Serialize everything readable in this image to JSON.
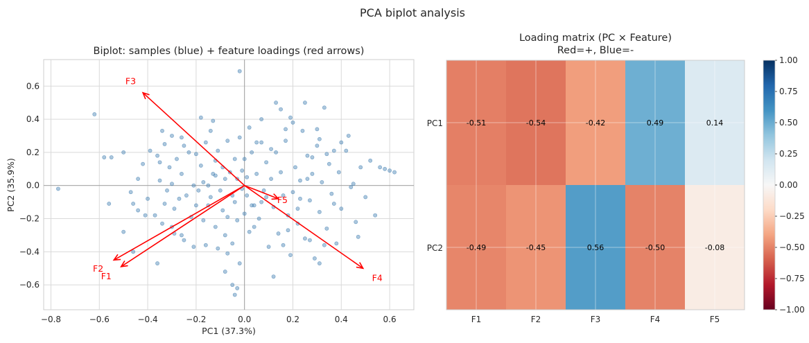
{
  "suptitle": "PCA biplot analysis",
  "chart_data": [
    {
      "type": "scatter",
      "title": "Biplot: samples (blue) + feature loadings (red arrows)",
      "xlabel": "PC1 (37.3%)",
      "ylabel": "PC2 (35.9%)",
      "xlim": [
        -0.83,
        0.7
      ],
      "ylim": [
        -0.75,
        0.76
      ],
      "xticks": [
        -0.8,
        -0.6,
        -0.4,
        -0.2,
        0.0,
        0.2,
        0.4,
        0.6
      ],
      "xtick_labels": [
        "−0.8",
        "−0.6",
        "−0.4",
        "−0.2",
        "0.0",
        "0.2",
        "0.4",
        "0.6"
      ],
      "yticks": [
        -0.6,
        -0.4,
        -0.2,
        0.0,
        0.2,
        0.4,
        0.6
      ],
      "ytick_labels": [
        "−0.6",
        "−0.4",
        "−0.2",
        "0.0",
        "0.2",
        "0.4",
        "0.6"
      ],
      "grid": true,
      "samples_color": "#4682b4",
      "arrow_color": "#ff0000",
      "arrows": [
        {
          "name": "F1",
          "dx": -0.51,
          "dy": -0.49
        },
        {
          "name": "F2",
          "dx": -0.54,
          "dy": -0.45
        },
        {
          "name": "F3",
          "dx": -0.42,
          "dy": 0.56
        },
        {
          "name": "F4",
          "dx": 0.49,
          "dy": -0.5
        },
        {
          "name": "F5",
          "dx": 0.14,
          "dy": -0.08
        }
      ],
      "points": [
        [
          -0.77,
          -0.02
        ],
        [
          -0.62,
          0.43
        ],
        [
          -0.55,
          0.17
        ],
        [
          -0.5,
          -0.28
        ],
        [
          -0.47,
          -0.04
        ],
        [
          -0.46,
          -0.11
        ],
        [
          -0.46,
          -0.4
        ],
        [
          -0.44,
          0.04
        ],
        [
          -0.42,
          0.13
        ],
        [
          -0.41,
          -0.18
        ],
        [
          -0.4,
          -0.08
        ],
        [
          -0.39,
          0.21
        ],
        [
          -0.37,
          -0.18
        ],
        [
          -0.36,
          -0.47
        ],
        [
          -0.36,
          0.18
        ],
        [
          -0.35,
          0.14
        ],
        [
          -0.35,
          0.03
        ],
        [
          -0.34,
          0.33
        ],
        [
          -0.34,
          -0.23
        ],
        [
          -0.33,
          -0.11
        ],
        [
          -0.32,
          -0.03
        ],
        [
          -0.31,
          0.11
        ],
        [
          -0.3,
          0.01
        ],
        [
          -0.29,
          -0.29
        ],
        [
          -0.29,
          -0.14
        ],
        [
          -0.28,
          0.16
        ],
        [
          -0.27,
          -0.08
        ],
        [
          -0.26,
          -0.3
        ],
        [
          -0.26,
          0.07
        ],
        [
          -0.25,
          0.24
        ],
        [
          -0.24,
          -0.06
        ],
        [
          -0.23,
          0.2
        ],
        [
          -0.22,
          -0.19
        ],
        [
          -0.21,
          0.0
        ],
        [
          -0.2,
          0.19
        ],
        [
          -0.2,
          -0.12
        ],
        [
          -0.19,
          -0.03
        ],
        [
          -0.18,
          0.12
        ],
        [
          -0.17,
          0.02
        ],
        [
          -0.17,
          -0.21
        ],
        [
          -0.16,
          0.26
        ],
        [
          -0.15,
          -0.12
        ],
        [
          -0.15,
          0.0
        ],
        [
          -0.14,
          0.33
        ],
        [
          -0.14,
          -0.07
        ],
        [
          -0.13,
          0.07
        ],
        [
          -0.12,
          -0.25
        ],
        [
          -0.12,
          0.15
        ],
        [
          -0.11,
          -0.38
        ],
        [
          -0.11,
          0.21
        ],
        [
          -0.1,
          -0.03
        ],
        [
          -0.09,
          -0.15
        ],
        [
          -0.09,
          0.11
        ],
        [
          -0.08,
          -0.3
        ],
        [
          -0.08,
          0.04
        ],
        [
          -0.07,
          -0.19
        ],
        [
          -0.07,
          0.27
        ],
        [
          -0.06,
          0.08
        ],
        [
          -0.05,
          -0.06
        ],
        [
          -0.05,
          -0.35
        ],
        [
          -0.04,
          0.16
        ],
        [
          -0.04,
          -0.1
        ],
        [
          -0.03,
          0.04
        ],
        [
          -0.03,
          -0.21
        ],
        [
          -0.02,
          0.29
        ],
        [
          -0.02,
          -0.47
        ],
        [
          -0.01,
          0.09
        ],
        [
          -0.01,
          -0.02
        ],
        [
          0.0,
          -0.17
        ],
        [
          0.0,
          0.16
        ],
        [
          0.01,
          -0.06
        ],
        [
          0.01,
          0.05
        ],
        [
          0.02,
          0.35
        ],
        [
          0.02,
          -0.28
        ],
        [
          0.03,
          0.2
        ],
        [
          0.04,
          -0.12
        ],
        [
          0.05,
          0.07
        ],
        [
          0.06,
          -0.2
        ],
        [
          0.07,
          0.26
        ],
        [
          0.08,
          -0.03
        ],
        [
          0.09,
          0.14
        ],
        [
          0.1,
          -0.37
        ],
        [
          0.11,
          0.04
        ],
        [
          0.12,
          -0.13
        ],
        [
          0.13,
          0.2
        ],
        [
          0.14,
          -0.29
        ],
        [
          0.15,
          0.08
        ],
        [
          0.16,
          -0.06
        ],
        [
          0.17,
          0.27
        ],
        [
          0.18,
          -0.18
        ],
        [
          0.19,
          0.41
        ],
        [
          0.2,
          -0.04
        ],
        [
          0.21,
          0.11
        ],
        [
          0.22,
          -0.23
        ],
        [
          0.23,
          0.03
        ],
        [
          0.24,
          0.33
        ],
        [
          0.25,
          -0.32
        ],
        [
          0.26,
          0.18
        ],
        [
          0.27,
          -0.09
        ],
        [
          0.28,
          0.07
        ],
        [
          0.29,
          -0.44
        ],
        [
          0.3,
          0.24
        ],
        [
          0.31,
          -0.16
        ],
        [
          0.32,
          0.02
        ],
        [
          0.33,
          0.47
        ],
        [
          0.34,
          -0.26
        ],
        [
          0.35,
          0.13
        ],
        [
          0.36,
          -0.05
        ],
        [
          0.37,
          0.21
        ],
        [
          0.38,
          -0.35
        ],
        [
          0.39,
          0.08
        ],
        [
          0.4,
          -0.14
        ],
        [
          0.42,
          0.21
        ],
        [
          0.44,
          -0.01
        ],
        [
          0.46,
          -0.22
        ],
        [
          0.48,
          0.11
        ],
        [
          0.5,
          -0.07
        ],
        [
          0.52,
          0.15
        ],
        [
          0.54,
          -0.18
        ],
        [
          0.56,
          0.11
        ],
        [
          0.58,
          0.1
        ],
        [
          0.6,
          0.09
        ],
        [
          0.62,
          0.08
        ],
        [
          -0.58,
          0.17
        ],
        [
          -0.56,
          -0.11
        ],
        [
          -0.5,
          0.2
        ],
        [
          -0.44,
          -0.15
        ],
        [
          -0.3,
          0.3
        ],
        [
          -0.25,
          -0.33
        ],
        [
          -0.18,
          0.41
        ],
        [
          -0.16,
          -0.36
        ],
        [
          -0.07,
          -0.41
        ],
        [
          -0.05,
          -0.6
        ],
        [
          -0.04,
          -0.66
        ],
        [
          -0.03,
          -0.62
        ],
        [
          0.03,
          -0.12
        ],
        [
          0.07,
          0.4
        ],
        [
          0.09,
          -0.07
        ],
        [
          0.13,
          0.5
        ],
        [
          0.15,
          0.46
        ],
        [
          0.16,
          -0.36
        ],
        [
          0.19,
          -0.42
        ],
        [
          0.2,
          0.38
        ],
        [
          0.22,
          -0.14
        ],
        [
          0.25,
          0.5
        ],
        [
          0.26,
          0.04
        ],
        [
          0.27,
          -0.33
        ],
        [
          0.3,
          0.34
        ],
        [
          0.31,
          0.28
        ],
        [
          0.33,
          -0.36
        ],
        [
          0.34,
          0.19
        ],
        [
          0.37,
          -0.11
        ],
        [
          0.4,
          0.26
        ],
        [
          0.43,
          0.3
        ],
        [
          0.45,
          0.01
        ],
        [
          0.47,
          -0.31
        ],
        [
          -0.02,
          0.69
        ],
        [
          -0.08,
          -0.52
        ],
        [
          0.12,
          -0.55
        ],
        [
          -0.21,
          -0.37
        ],
        [
          -0.13,
          0.39
        ],
        [
          0.07,
          -0.1
        ],
        [
          -0.26,
          0.29
        ],
        [
          0.31,
          -0.47
        ],
        [
          0.17,
          0.34
        ],
        [
          0.23,
          -0.08
        ],
        [
          0.05,
          0.26
        ],
        [
          -0.3,
          -0.25
        ],
        [
          -0.12,
          0.06
        ],
        [
          0.04,
          -0.25
        ],
        [
          0.28,
          0.17
        ],
        [
          -0.33,
          0.25
        ],
        [
          0.11,
          0.22
        ],
        [
          0.18,
          -0.27
        ]
      ]
    },
    {
      "type": "heatmap",
      "title": "Loading matrix (PC × Feature)",
      "subtitle": "Red=+, Blue=-",
      "rows": [
        "PC1",
        "PC2"
      ],
      "columns": [
        "F1",
        "F2",
        "F3",
        "F4",
        "F5"
      ],
      "values": [
        [
          -0.51,
          -0.54,
          -0.42,
          0.49,
          0.14
        ],
        [
          -0.49,
          -0.45,
          0.56,
          -0.5,
          -0.08
        ]
      ],
      "cell_labels": [
        [
          "-0.51",
          "-0.54",
          "-0.42",
          "0.49",
          "0.14"
        ],
        [
          "-0.49",
          "-0.45",
          "0.56",
          "-0.50",
          "-0.08"
        ]
      ],
      "vmin": -1.0,
      "vmax": 1.0,
      "colormap": "RdBu",
      "colorbar_ticks": [
        1.0,
        0.75,
        0.5,
        0.25,
        0.0,
        -0.25,
        -0.5,
        -0.75,
        -1.0
      ],
      "colorbar_tick_labels": [
        "1.00",
        "0.75",
        "0.50",
        "0.25",
        "0.00",
        "−0.25",
        "−0.50",
        "−0.75",
        "−1.00"
      ]
    }
  ]
}
